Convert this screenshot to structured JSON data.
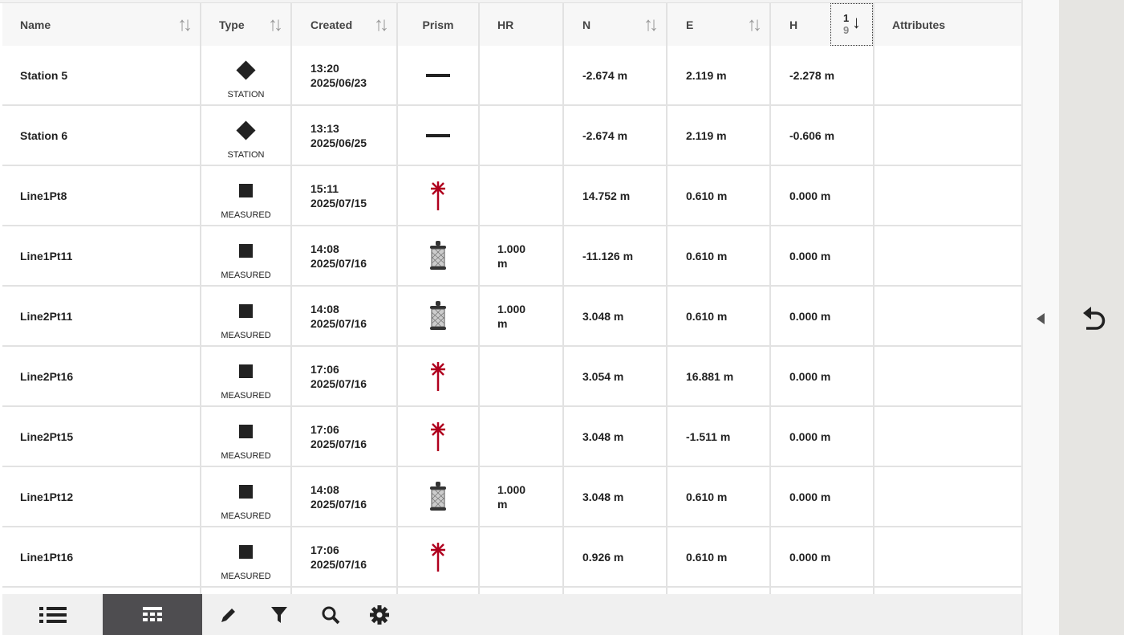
{
  "columns": {
    "name": "Name",
    "type": "Type",
    "created": "Created",
    "prism": "Prism",
    "hr": "HR",
    "n": "N",
    "e": "E",
    "h": "H",
    "attributes": "Attributes"
  },
  "sort_active": {
    "column": "H",
    "top": "1",
    "bottom": "9"
  },
  "rows": [
    {
      "name": "Station 5",
      "symbol": "diamond",
      "type": "STATION",
      "time": "13:20",
      "date": "2025/06/23",
      "prism": "none",
      "hr": "",
      "n": "-2.674 m",
      "e": "2.119 m",
      "h": "-2.278 m"
    },
    {
      "name": "Station 6",
      "symbol": "diamond",
      "type": "STATION",
      "time": "13:13",
      "date": "2025/06/25",
      "prism": "none",
      "hr": "",
      "n": "-2.674 m",
      "e": "2.119 m",
      "h": "-0.606 m"
    },
    {
      "name": "Line1Pt8",
      "symbol": "square",
      "type": "MEASURED",
      "time": "15:11",
      "date": "2025/07/15",
      "prism": "reflectorless",
      "hr": "",
      "n": "14.752 m",
      "e": "0.610 m",
      "h": "0.000 m"
    },
    {
      "name": "Line1Pt11",
      "symbol": "square",
      "type": "MEASURED",
      "time": "14:08",
      "date": "2025/07/16",
      "prism": "prism",
      "hr": "1.000 m",
      "n": "-11.126 m",
      "e": "0.610 m",
      "h": "0.000 m"
    },
    {
      "name": "Line2Pt11",
      "symbol": "square",
      "type": "MEASURED",
      "time": "14:08",
      "date": "2025/07/16",
      "prism": "prism",
      "hr": "1.000 m",
      "n": "3.048 m",
      "e": "0.610 m",
      "h": "0.000 m"
    },
    {
      "name": "Line2Pt16",
      "symbol": "square",
      "type": "MEASURED",
      "time": "17:06",
      "date": "2025/07/16",
      "prism": "reflectorless",
      "hr": "",
      "n": "3.054 m",
      "e": "16.881 m",
      "h": "0.000 m"
    },
    {
      "name": "Line2Pt15",
      "symbol": "square",
      "type": "MEASURED",
      "time": "17:06",
      "date": "2025/07/16",
      "prism": "reflectorless",
      "hr": "",
      "n": "3.048 m",
      "e": "-1.511 m",
      "h": "0.000 m"
    },
    {
      "name": "Line1Pt12",
      "symbol": "square",
      "type": "MEASURED",
      "time": "14:08",
      "date": "2025/07/16",
      "prism": "prism",
      "hr": "1.000 m",
      "n": "3.048 m",
      "e": "0.610 m",
      "h": "0.000 m"
    },
    {
      "name": "Line1Pt16",
      "symbol": "square",
      "type": "MEASURED",
      "time": "17:06",
      "date": "2025/07/16",
      "prism": "reflectorless",
      "hr": "",
      "n": "0.926 m",
      "e": "0.610 m",
      "h": "0.000 m"
    }
  ],
  "toolbar": [
    "list-icon",
    "table-icon",
    "pencil-icon",
    "filter-icon",
    "search-icon",
    "gear-icon"
  ],
  "toolbar_active": "table-icon",
  "colors": {
    "accent_red": "#b0001e",
    "toolbar_active_bg": "#4e4d50",
    "header_bg": "#f7f7f7"
  }
}
